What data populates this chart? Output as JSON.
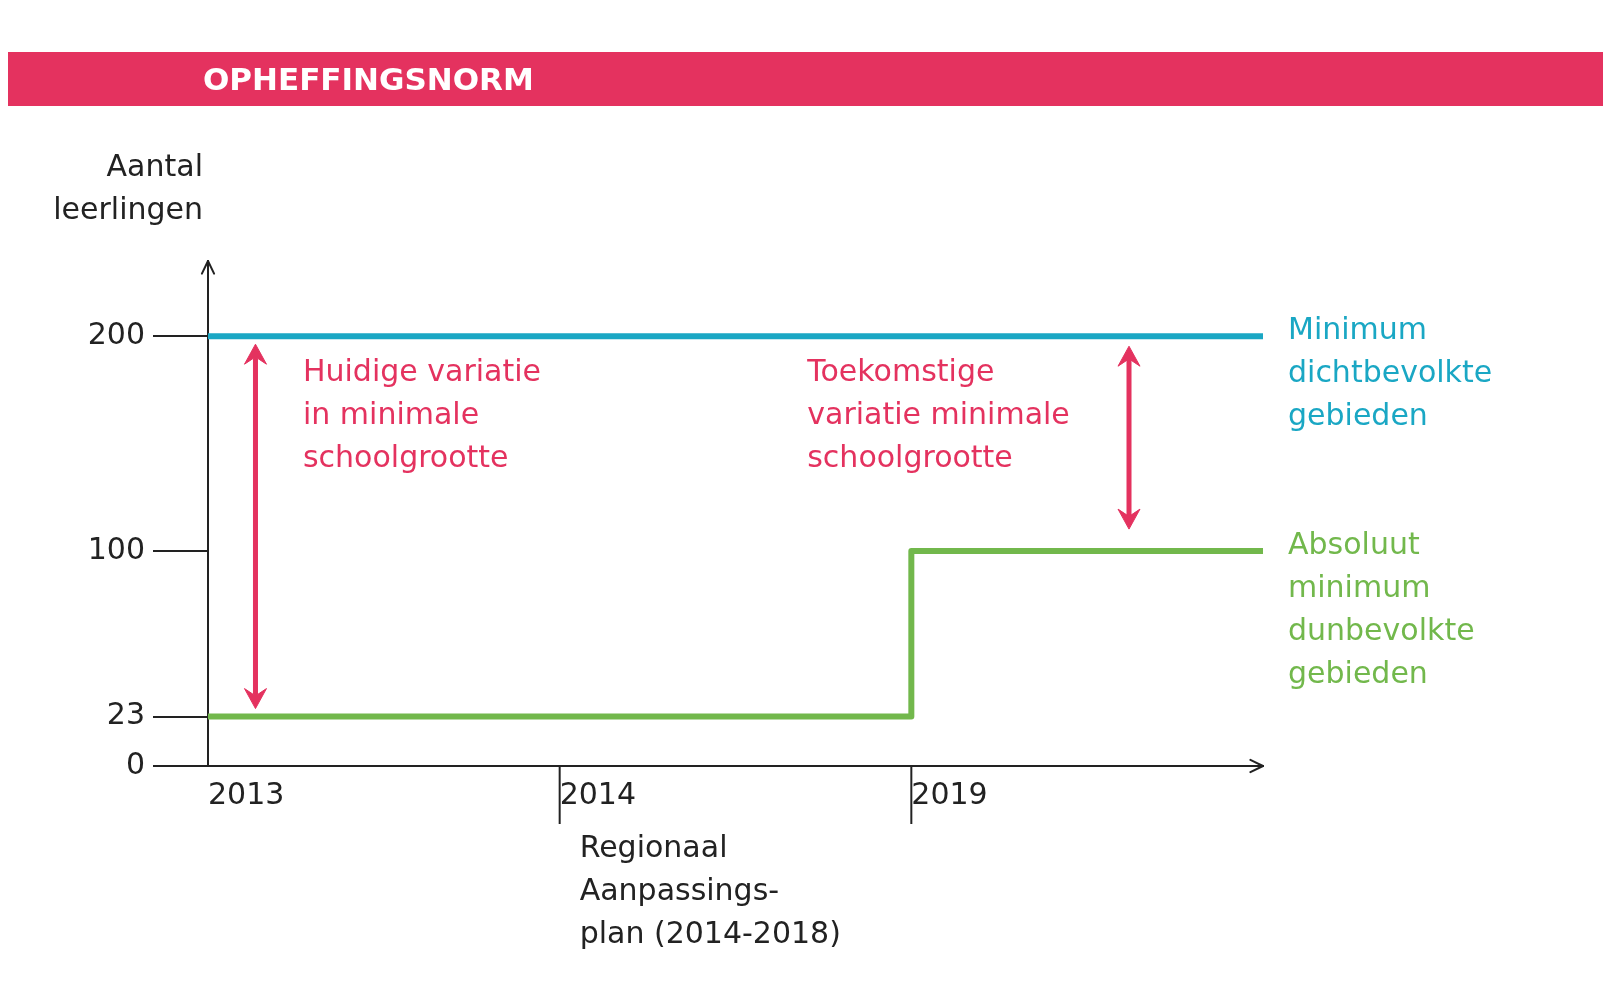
{
  "chart_data": {
    "type": "line",
    "title": "OPHEFFINGSNORM",
    "ylabel": "Aantal leerlingen",
    "categories": [
      "2013",
      "2014",
      "2019",
      null
    ],
    "series": [
      {
        "name": "Minimum dichtbevolkte gebieden",
        "color": "#1aa7c4",
        "values": [
          200,
          200,
          200,
          200
        ]
      },
      {
        "name": "Absoluut minimum dunbevolkte gebieden",
        "color": "#72b84c",
        "type": "step",
        "values": [
          23,
          23,
          100,
          100
        ]
      }
    ],
    "ylim": [
      0,
      235
    ],
    "yticks": [
      0,
      23,
      100,
      200
    ],
    "grid": false,
    "legend": false,
    "annotations": [
      "Huidige variatie\nin minimale\nschoolgrootte",
      "Toekomstige\nvariatie minimale\nschoolgrootte",
      "Regionaal\nAanpassings-\nplan (2014-2018)"
    ]
  }
}
